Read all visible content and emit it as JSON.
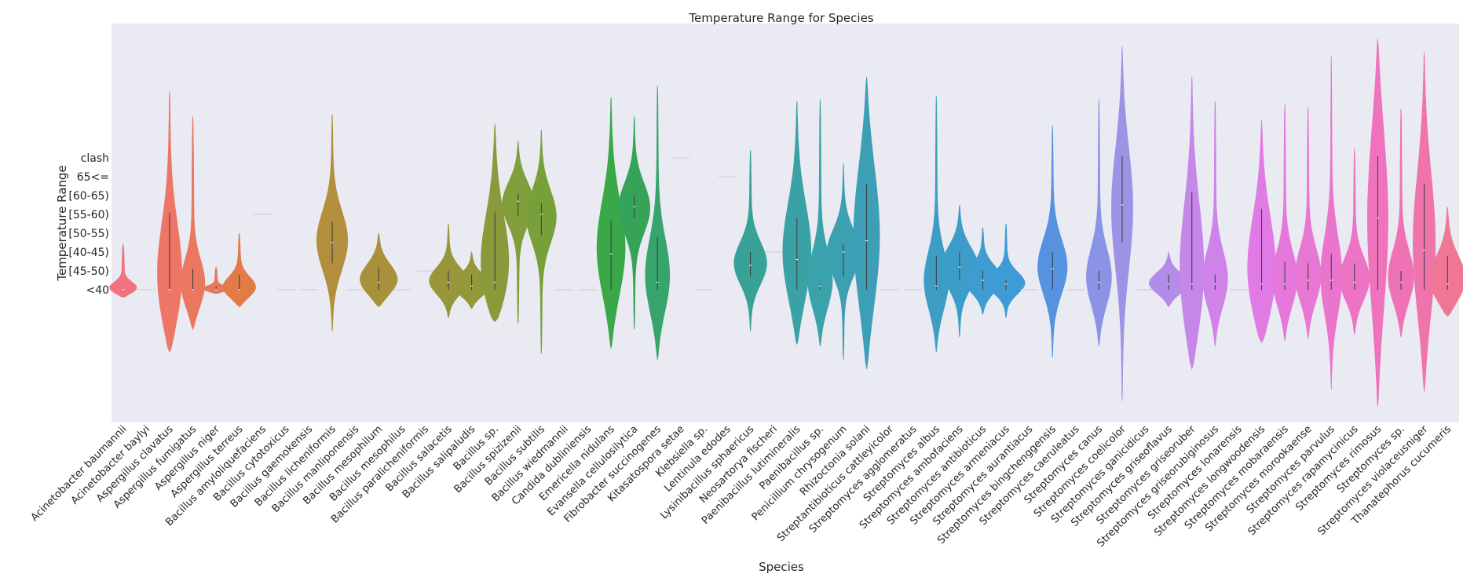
{
  "chart_data": {
    "type": "violin",
    "title": "Temperature Range for Species",
    "xlabel": "Species",
    "ylabel": "Temperature Range",
    "y_categories": [
      "<40",
      "[45-50)",
      "[40-45)",
      "[50-55)",
      "[55-60)",
      "[60-65)",
      "65<=",
      "clash"
    ],
    "grid": false,
    "legend": "none",
    "background": "#eaeaf2",
    "species": [
      {
        "label": "Acinetobacter baumannii",
        "color": "#f0737f",
        "min": -0.4,
        "max": 2.4,
        "median": 0,
        "q1": 0,
        "q3": 0
      },
      {
        "label": "Acinetobacter baylyi",
        "color": "#ef7476",
        "min": 0,
        "max": 0,
        "median": 0,
        "q1": 0,
        "q3": 0
      },
      {
        "label": "Aspergillus clavatus",
        "color": "#ed7666",
        "min": -3.3,
        "max": 10.5,
        "median": 0,
        "q1": 0,
        "q3": 4.1
      },
      {
        "label": "Aspergillus fumigatus",
        "color": "#ea7760",
        "min": -2.1,
        "max": 9.2,
        "median": 0,
        "q1": 0,
        "q3": 1.1
      },
      {
        "label": "Aspergillus niger",
        "color": "#e7795a",
        "min": -0.2,
        "max": 1.2,
        "median": 0,
        "q1": 0,
        "q3": 0.2
      },
      {
        "label": "Aspergillus terreus",
        "color": "#e27b45",
        "min": -0.9,
        "max": 3.0,
        "median": 0,
        "q1": 0,
        "q3": 0.8
      },
      {
        "label": "Bacillus amyloliquefaciens",
        "color": "#d98533",
        "min": 4.0,
        "max": 4.0,
        "median": 4,
        "q1": 4,
        "q3": 4
      },
      {
        "label": "Bacillus cytotoxicus",
        "color": "#d38b35",
        "min": 0,
        "max": 0,
        "median": 0,
        "q1": 0,
        "q3": 0
      },
      {
        "label": "Bacillus gaemokensis",
        "color": "#cc8f36",
        "min": 0,
        "max": 0,
        "median": 0,
        "q1": 0,
        "q3": 0
      },
      {
        "label": "Bacillus licheniformis",
        "color": "#b38f3d",
        "min": -2.2,
        "max": 9.3,
        "median": 2.5,
        "q1": 1.4,
        "q3": 3.6
      },
      {
        "label": "Bacillus manliponensis",
        "color": "#ad8f3d",
        "min": 0,
        "max": 0,
        "median": 0,
        "q1": 0,
        "q3": 0
      },
      {
        "label": "Bacillus mesophilum",
        "color": "#a8913a",
        "min": -0.9,
        "max": 3.0,
        "median": 0.4,
        "q1": 0,
        "q3": 1.2
      },
      {
        "label": "Bacillus mesophilus",
        "color": "#a3923a",
        "min": 0,
        "max": 0,
        "median": 0,
        "q1": 0,
        "q3": 0
      },
      {
        "label": "Bacillus paralicheniformis",
        "color": "#9d963a",
        "min": 1.0,
        "max": 1.0,
        "median": 1,
        "q1": 1,
        "q3": 1
      },
      {
        "label": "Bacillus salacetis",
        "color": "#99963a",
        "min": -1.5,
        "max": 3.5,
        "median": 0.4,
        "q1": 0,
        "q3": 1.0
      },
      {
        "label": "Bacillus salipaludis",
        "color": "#94973a",
        "min": -1.0,
        "max": 2.0,
        "median": 0.2,
        "q1": 0,
        "q3": 0.8
      },
      {
        "label": "Bacillus sp.",
        "color": "#8a9a3a",
        "min": -1.7,
        "max": 8.8,
        "median": 0.4,
        "q1": 0,
        "q3": 4.1
      },
      {
        "label": "Bacillus spizizenii",
        "color": "#809e3a",
        "min": -1.8,
        "max": 7.9,
        "median": 4.7,
        "q1": 3.9,
        "q3": 5.1
      },
      {
        "label": "Bacillus subtilis",
        "color": "#78a03a",
        "min": -3.4,
        "max": 8.5,
        "median": 4.0,
        "q1": 2.9,
        "q3": 4.6
      },
      {
        "label": "Bacillus wiedmannii",
        "color": "#6ea23a",
        "min": 0,
        "max": 0,
        "median": 0,
        "q1": 0,
        "q3": 0
      },
      {
        "label": "Candida dubliniensis",
        "color": "#5aa43e",
        "min": 0,
        "max": 0,
        "median": 0,
        "q1": 0,
        "q3": 0
      },
      {
        "label": "Emericella nidulans",
        "color": "#3aa848",
        "min": -3.1,
        "max": 10.2,
        "median": 1.9,
        "q1": 0,
        "q3": 3.7
      },
      {
        "label": "Evansella cellulosilytica",
        "color": "#35a458",
        "min": -2.1,
        "max": 9.2,
        "median": 4.4,
        "q1": 3.8,
        "q3": 5.0
      },
      {
        "label": "Fibrobacter succinogenes",
        "color": "#37a46e",
        "min": -3.7,
        "max": 10.8,
        "median": 0.4,
        "q1": 0,
        "q3": 2.8
      },
      {
        "label": "Kitasatospora setae",
        "color": "#37a27a",
        "min": 7.0,
        "max": 7.0,
        "median": 7,
        "q1": 7,
        "q3": 7
      },
      {
        "label": "Klebsiella sp.",
        "color": "#38a285",
        "min": 0,
        "max": 0,
        "median": 0,
        "q1": 0,
        "q3": 0
      },
      {
        "label": "Lentinula edodes",
        "color": "#38a28f",
        "min": 6.0,
        "max": 6.0,
        "median": 6,
        "q1": 6,
        "q3": 6
      },
      {
        "label": "Lysinibacillus sphaericus",
        "color": "#39a298",
        "min": -2.2,
        "max": 7.4,
        "median": 1.3,
        "q1": 0.7,
        "q3": 2.0
      },
      {
        "label": "Neosartorya fischeri",
        "color": "#39a2a0",
        "min": 2.0,
        "max": 2.0,
        "median": 2,
        "q1": 2,
        "q3": 2
      },
      {
        "label": "Paenibacillus lutimineralis",
        "color": "#3aa1a5",
        "min": -2.9,
        "max": 10.0,
        "median": 1.6,
        "q1": 0,
        "q3": 3.8
      },
      {
        "label": "Paenibacillus sp.",
        "color": "#3aa2ab",
        "min": -3.0,
        "max": 10.1,
        "median": 0.2,
        "q1": 0,
        "q3": 0.3
      },
      {
        "label": "Penicillium chrysogenum",
        "color": "#3ba0b0",
        "min": -3.7,
        "max": 6.7,
        "median": 2.0,
        "q1": 0.7,
        "q3": 2.4
      },
      {
        "label": "Rhizoctonia solani",
        "color": "#3c9fb5",
        "min": -4.2,
        "max": 11.3,
        "median": 2.6,
        "q1": 0,
        "q3": 5.6
      },
      {
        "label": "Streptantibioticus cattleyicolor",
        "color": "#3c9eba",
        "min": 0,
        "max": 0,
        "median": 0,
        "q1": 0,
        "q3": 0
      },
      {
        "label": "Streptomyces agglomeratus",
        "color": "#3d9ebf",
        "min": 0,
        "max": 0,
        "median": 0,
        "q1": 0,
        "q3": 0
      },
      {
        "label": "Streptomyces albus",
        "color": "#3d9dc4",
        "min": -3.3,
        "max": 10.3,
        "median": 0.2,
        "q1": 0,
        "q3": 1.8
      },
      {
        "label": "Streptomyces ambofaciens",
        "color": "#3d9dca",
        "min": -2.5,
        "max": 4.5,
        "median": 1.2,
        "q1": 0.5,
        "q3": 2.0
      },
      {
        "label": "Streptomyces antibioticus",
        "color": "#3e9cd0",
        "min": -1.3,
        "max": 3.3,
        "median": 0.5,
        "q1": 0,
        "q3": 1.0
      },
      {
        "label": "Streptomyces armeniacus",
        "color": "#3f9bd5",
        "min": -1.5,
        "max": 3.5,
        "median": 0.3,
        "q1": 0,
        "q3": 0.5
      },
      {
        "label": "Streptomyces aurantiacus",
        "color": "#4a97dc",
        "min": 0,
        "max": 0,
        "median": 0,
        "q1": 0,
        "q3": 0
      },
      {
        "label": "Streptomyces bingchenggensis",
        "color": "#5592e0",
        "min": -3.6,
        "max": 8.7,
        "median": 1.1,
        "q1": 0,
        "q3": 2.0
      },
      {
        "label": "Streptomyces caeruleatus",
        "color": "#6f8fe6",
        "min": 0,
        "max": 0,
        "median": 0,
        "q1": 0,
        "q3": 0
      },
      {
        "label": "Streptomyces canus",
        "color": "#8a93e6",
        "min": -3.0,
        "max": 10.1,
        "median": 0.4,
        "q1": 0,
        "q3": 1.0
      },
      {
        "label": "Streptomyces coelicolor",
        "color": "#9c93e5",
        "min": -5.9,
        "max": 12.9,
        "median": 4.5,
        "q1": 2.5,
        "q3": 7.1
      },
      {
        "label": "Streptomyces ganicidicus",
        "color": "#a78fe5",
        "min": 0,
        "max": 0,
        "median": 0,
        "q1": 0,
        "q3": 0
      },
      {
        "label": "Streptomyces griseoflavus",
        "color": "#b38be8",
        "min": -0.9,
        "max": 2.0,
        "median": 0.3,
        "q1": 0,
        "q3": 0.8
      },
      {
        "label": "Streptomyces griseoruber",
        "color": "#c587e8",
        "min": -4.2,
        "max": 11.3,
        "median": 0.3,
        "q1": 0,
        "q3": 5.2
      },
      {
        "label": "Streptomyces griseorubiginosus",
        "color": "#cf82e8",
        "min": -3.0,
        "max": 10.0,
        "median": 0.3,
        "q1": 0,
        "q3": 0.8
      },
      {
        "label": "Streptomyces lonarensis",
        "color": "#d77ee8",
        "min": 0,
        "max": 0,
        "median": 0,
        "q1": 0,
        "q3": 0
      },
      {
        "label": "Streptomyces longwoodensis",
        "color": "#e07ae4",
        "min": -2.8,
        "max": 9.0,
        "median": 0.3,
        "q1": 0,
        "q3": 4.3
      },
      {
        "label": "Streptomyces mobaraensis",
        "color": "#e478dc",
        "min": -2.7,
        "max": 9.9,
        "median": 0.3,
        "q1": 0,
        "q3": 1.5
      },
      {
        "label": "Streptomyces morookaense",
        "color": "#e877d4",
        "min": -2.6,
        "max": 9.7,
        "median": 0.5,
        "q1": 0,
        "q3": 1.4
      },
      {
        "label": "Streptomyces parvulus",
        "color": "#ea75cc",
        "min": -5.3,
        "max": 12.4,
        "median": 0.5,
        "q1": 0,
        "q3": 1.9
      },
      {
        "label": "Streptomyces rapamycinicus",
        "color": "#ed74c4",
        "min": -2.4,
        "max": 7.5,
        "median": 0.4,
        "q1": 0,
        "q3": 1.4
      },
      {
        "label": "Streptomyces rimosus",
        "color": "#ee73bc",
        "min": -6.2,
        "max": 13.3,
        "median": 3.8,
        "q1": 0,
        "q3": 7.1
      },
      {
        "label": "Streptomyces sp.",
        "color": "#ef73b4",
        "min": -2.5,
        "max": 9.6,
        "median": 0.4,
        "q1": 0,
        "q3": 1.0
      },
      {
        "label": "Streptomyces violaceusniger",
        "color": "#ef74ab",
        "min": -5.4,
        "max": 12.6,
        "median": 2.1,
        "q1": 0,
        "q3": 5.6
      },
      {
        "label": "Thanatephorus cucumeris",
        "color": "#f07695",
        "min": -1.4,
        "max": 4.4,
        "median": 0.3,
        "q1": 0,
        "q3": 1.8
      }
    ]
  }
}
